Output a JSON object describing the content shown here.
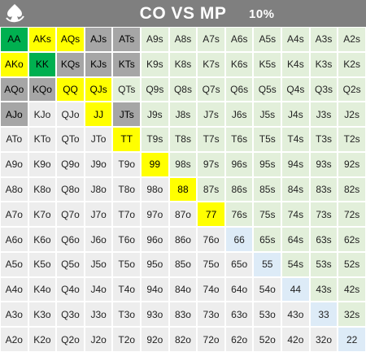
{
  "header": {
    "title": "CO VS MP",
    "percent": "10%",
    "logo_icon": "spade-swirl-logo-icon",
    "background": "#7f7f7f"
  },
  "colors": {
    "suited": "#e2efda",
    "offsuit": "#ededed",
    "pair_low": "#ddebf7",
    "green": "#00b050",
    "yellow": "#ffff00",
    "grey": "#a6a6a6"
  },
  "grid": {
    "rows": [
      [
        "AA",
        "AKs",
        "AQs",
        "AJs",
        "ATs",
        "A9s",
        "A8s",
        "A7s",
        "A6s",
        "A5s",
        "A4s",
        "A3s",
        "A2s"
      ],
      [
        "AKo",
        "KK",
        "KQs",
        "KJs",
        "KTs",
        "K9s",
        "K8s",
        "K7s",
        "K6s",
        "K5s",
        "K4s",
        "K3s",
        "K2s"
      ],
      [
        "AQo",
        "KQo",
        "QQ",
        "QJs",
        "QTs",
        "Q9s",
        "Q8s",
        "Q7s",
        "Q6s",
        "Q5s",
        "Q4s",
        "Q3s",
        "Q2s"
      ],
      [
        "AJo",
        "KJo",
        "QJo",
        "JJ",
        "JTs",
        "J9s",
        "J8s",
        "J7s",
        "J6s",
        "J5s",
        "J4s",
        "J3s",
        "J2s"
      ],
      [
        "ATo",
        "KTo",
        "QTo",
        "JTo",
        "TT",
        "T9s",
        "T8s",
        "T7s",
        "T6s",
        "T5s",
        "T4s",
        "T3s",
        "T2s"
      ],
      [
        "A9o",
        "K9o",
        "Q9o",
        "J9o",
        "T9o",
        "99",
        "98s",
        "97s",
        "96s",
        "95s",
        "94s",
        "93s",
        "92s"
      ],
      [
        "A8o",
        "K8o",
        "Q8o",
        "J8o",
        "T8o",
        "98o",
        "88",
        "87s",
        "86s",
        "85s",
        "84s",
        "83s",
        "82s"
      ],
      [
        "A7o",
        "K7o",
        "Q7o",
        "J7o",
        "T7o",
        "97o",
        "87o",
        "77",
        "76s",
        "75s",
        "74s",
        "73s",
        "72s"
      ],
      [
        "A6o",
        "K6o",
        "Q6o",
        "J6o",
        "T6o",
        "96o",
        "86o",
        "76o",
        "66",
        "65s",
        "64s",
        "63s",
        "62s"
      ],
      [
        "A5o",
        "K5o",
        "Q5o",
        "J5o",
        "T5o",
        "95o",
        "85o",
        "75o",
        "65o",
        "55",
        "54s",
        "53s",
        "52s"
      ],
      [
        "A4o",
        "K4o",
        "Q4o",
        "J4o",
        "T4o",
        "94o",
        "84o",
        "74o",
        "64o",
        "54o",
        "44",
        "43s",
        "42s"
      ],
      [
        "A3o",
        "K3o",
        "Q3o",
        "J3o",
        "T3o",
        "93o",
        "83o",
        "73o",
        "63o",
        "53o",
        "43o",
        "33",
        "32s"
      ],
      [
        "A2o",
        "K2o",
        "Q2o",
        "J2o",
        "T2o",
        "92o",
        "82o",
        "72o",
        "62o",
        "52o",
        "42o",
        "32o",
        "22"
      ]
    ],
    "green": [
      "AA",
      "KK"
    ],
    "yellow": [
      "AKs",
      "AQs",
      "AKo",
      "QQ",
      "QJs",
      "JJ",
      "TT",
      "99",
      "88",
      "77"
    ],
    "grey": [
      "AJs",
      "ATs",
      "KQs",
      "KJs",
      "KTs",
      "AQo",
      "KQo",
      "AJo",
      "JTs"
    ],
    "blue": [
      "66",
      "55",
      "44",
      "33",
      "22"
    ]
  }
}
